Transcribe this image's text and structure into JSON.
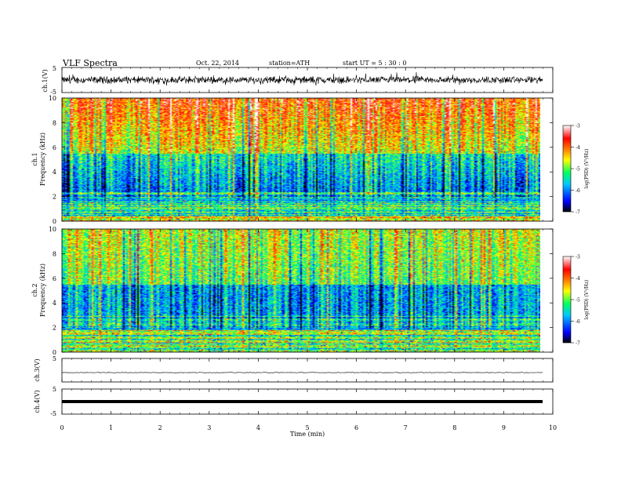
{
  "header": {
    "title": "VLF  Spectra",
    "date": "Oct. 22, 2014",
    "station": "station=ATH",
    "start": "start  UT  =   5  : 30 : 0"
  },
  "chart_data": [
    {
      "type": "line",
      "ylabel": "ch.1(V)",
      "ylim": [
        -5,
        5
      ],
      "yticks": [
        "5",
        "-5"
      ],
      "description_level": "noisy broadband waveform, amplitude about ±2 V"
    },
    {
      "type": "heatmap",
      "ylabel": "ch.1",
      "ylabel2": "Frequency  (kHz)",
      "ylim": [
        0,
        10
      ],
      "yticks": [
        "0",
        "2",
        "4",
        "6",
        "8",
        "10"
      ],
      "colorbar": {
        "label": "log(PSD) (V²/Hz)",
        "range": [
          -7,
          -3
        ],
        "ticks": [
          "-3",
          "-4",
          "-5",
          "-6",
          "-7"
        ],
        "colors": [
          "#000000",
          "#0000ff",
          "#00c8ff",
          "#00ff60",
          "#ffff00",
          "#ff8000",
          "#ff0000",
          "#ffffff"
        ]
      }
    },
    {
      "type": "heatmap",
      "ylabel": "ch.2",
      "ylabel2": "Frequency  (kHz)",
      "ylim": [
        0,
        10
      ],
      "yticks": [
        "0",
        "2",
        "4",
        "6",
        "8",
        "10"
      ],
      "colorbar": {
        "label": "log(PSD) (V²/Hz)",
        "range": [
          -7,
          -3
        ],
        "ticks": [
          "-3",
          "-4",
          "-5",
          "-6",
          "-7"
        ],
        "colors": [
          "#000000",
          "#0000ff",
          "#00c8ff",
          "#00ff60",
          "#ffff00",
          "#ff8000",
          "#ff0000",
          "#ffffff"
        ]
      }
    },
    {
      "type": "line",
      "ylabel": "ch.3(V)",
      "ylim": [
        -5,
        5
      ],
      "yticks": [
        "5"
      ],
      "level": -1
    },
    {
      "type": "line",
      "ylabel": "ch.4(V)",
      "ylim": [
        -5,
        5
      ],
      "yticks": [
        "5",
        "-5"
      ],
      "level": 0
    }
  ],
  "xaxis": {
    "label": "Time  (min)",
    "range": [
      0,
      10
    ],
    "ticks": [
      "0",
      "1",
      "2",
      "3",
      "4",
      "5",
      "6",
      "7",
      "8",
      "9",
      "10"
    ],
    "data_end": 9.8
  }
}
